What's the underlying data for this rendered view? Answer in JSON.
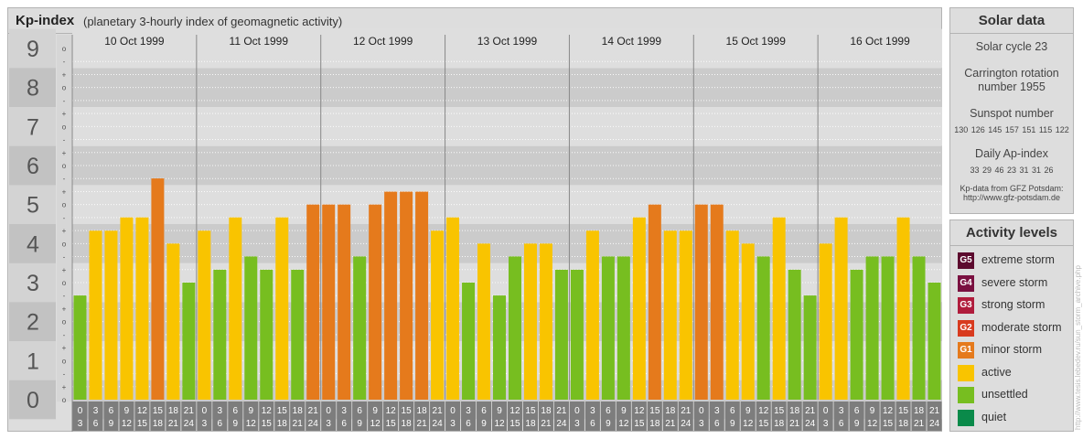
{
  "header": {
    "title": "Kp-index",
    "subtitle": "(planetary 3-hourly index of geomagnetic activity)"
  },
  "chart_data": {
    "type": "bar",
    "title": "Kp-index",
    "subtitle": "(planetary 3-hourly index of geomagnetic activity)",
    "ylim": [
      0,
      9
    ],
    "y_ticks": [
      "0",
      "1",
      "2",
      "3",
      "4",
      "5",
      "6",
      "7",
      "8",
      "9"
    ],
    "y_subticks": [
      "-",
      "o",
      "+"
    ],
    "days": [
      "10 Oct 1999",
      "11 Oct 1999",
      "12 Oct 1999",
      "13 Oct 1999",
      "14 Oct 1999",
      "15 Oct 1999",
      "16 Oct 1999"
    ],
    "interval_labels": [
      [
        "0",
        "3"
      ],
      [
        "3",
        "6"
      ],
      [
        "6",
        "9"
      ],
      [
        "9",
        "12"
      ],
      [
        "12",
        "15"
      ],
      [
        "15",
        "18"
      ],
      [
        "18",
        "21"
      ],
      [
        "21",
        "24"
      ]
    ],
    "values": [
      [
        2.67,
        4.33,
        4.33,
        4.67,
        4.67,
        5.67,
        4.0,
        3.0
      ],
      [
        4.33,
        3.33,
        4.67,
        3.67,
        3.33,
        4.67,
        3.33,
        5.0
      ],
      [
        5.0,
        5.0,
        3.67,
        5.0,
        5.33,
        5.33,
        5.33,
        4.33
      ],
      [
        4.67,
        3.0,
        4.0,
        2.67,
        3.67,
        4.0,
        4.0,
        3.33
      ],
      [
        3.33,
        4.33,
        3.67,
        3.67,
        4.67,
        5.0,
        4.33,
        4.33
      ],
      [
        5.0,
        5.0,
        4.33,
        4.0,
        3.67,
        4.67,
        3.33,
        2.67
      ],
      [
        4.0,
        4.67,
        3.33,
        3.67,
        3.67,
        4.67,
        3.67,
        3.0
      ]
    ],
    "colors": {
      "quiet": "#0a8a4a",
      "unsettled": "#77be20",
      "active": "#f9c400",
      "G1": "#e57a1c",
      "G2": "#d83a1e",
      "G3": "#b01c3c",
      "G4": "#7a1040",
      "G5": "#5c0a2e"
    }
  },
  "solar": {
    "title": "Solar data",
    "cycle": "Solar cycle 23",
    "carrington_line1": "Carrington rotation",
    "carrington_line2": "number 1955",
    "sunspot_label": "Sunspot number",
    "sunspot_values": "130 126 145 157 151 115 122",
    "ap_label": "Daily Ap-index",
    "ap_values": "33 29 46 23 31 31 26",
    "credit_line1": "Kp-data from GFZ Potsdam:",
    "credit_line2": "http://www.gfz-potsdam.de"
  },
  "activity": {
    "title": "Activity levels",
    "items": [
      {
        "code": "G5",
        "label": "extreme storm",
        "color": "#5c0a2e"
      },
      {
        "code": "G4",
        "label": "severe storm",
        "color": "#7a1040"
      },
      {
        "code": "G3",
        "label": "strong storm",
        "color": "#b01c3c"
      },
      {
        "code": "G2",
        "label": "moderate storm",
        "color": "#d83a1e"
      },
      {
        "code": "G1",
        "label": "minor storm",
        "color": "#e57a1c"
      },
      {
        "code": "",
        "label": "active",
        "color": "#f9c400"
      },
      {
        "code": "",
        "label": "unsettled",
        "color": "#77be20"
      },
      {
        "code": "",
        "label": "quiet",
        "color": "#0a8a4a"
      }
    ]
  },
  "credit_vertical": "http://www.tesis.lebedev.ru/sun_storm_archive.php"
}
